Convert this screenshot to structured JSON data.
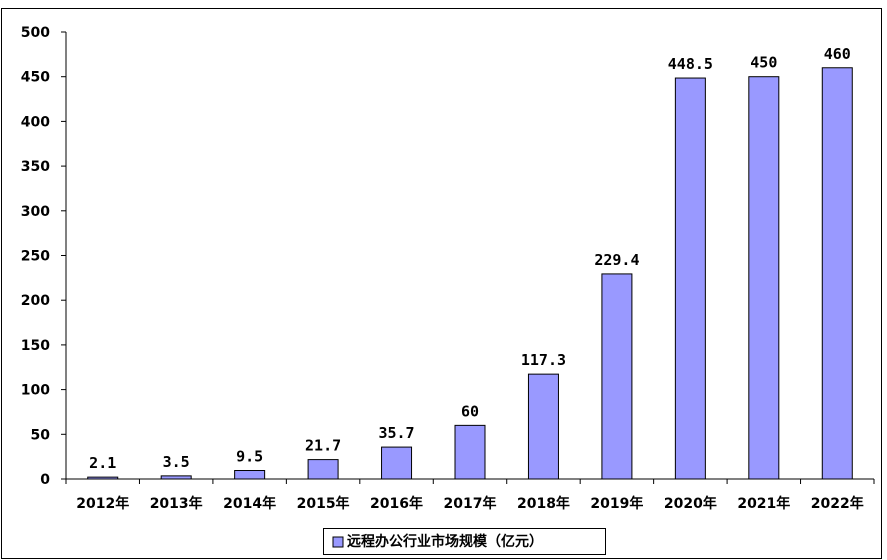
{
  "chart_data": {
    "type": "bar",
    "categories": [
      "2012年",
      "2013年",
      "2014年",
      "2015年",
      "2016年",
      "2017年",
      "2018年",
      "2019年",
      "2020年",
      "2021年",
      "2022年"
    ],
    "series": [
      {
        "name": "远程办公行业市场规模（亿元）",
        "values": [
          2.1,
          3.5,
          9.5,
          21.7,
          35.7,
          60,
          117.3,
          229.4,
          448.5,
          450,
          460
        ],
        "value_labels": [
          "2.1",
          "3.5",
          "9.5",
          "21.7",
          "35.7",
          "60",
          "117.3",
          "229.4",
          "448.5",
          "450",
          "460"
        ],
        "color": "#9999ff"
      }
    ],
    "title": "",
    "xlabel": "",
    "ylabel": "",
    "ylim": [
      0,
      500
    ],
    "yticks": [
      0,
      50,
      100,
      150,
      200,
      250,
      300,
      350,
      400,
      450,
      500
    ],
    "grid": false,
    "legend_position": "bottom-center"
  }
}
